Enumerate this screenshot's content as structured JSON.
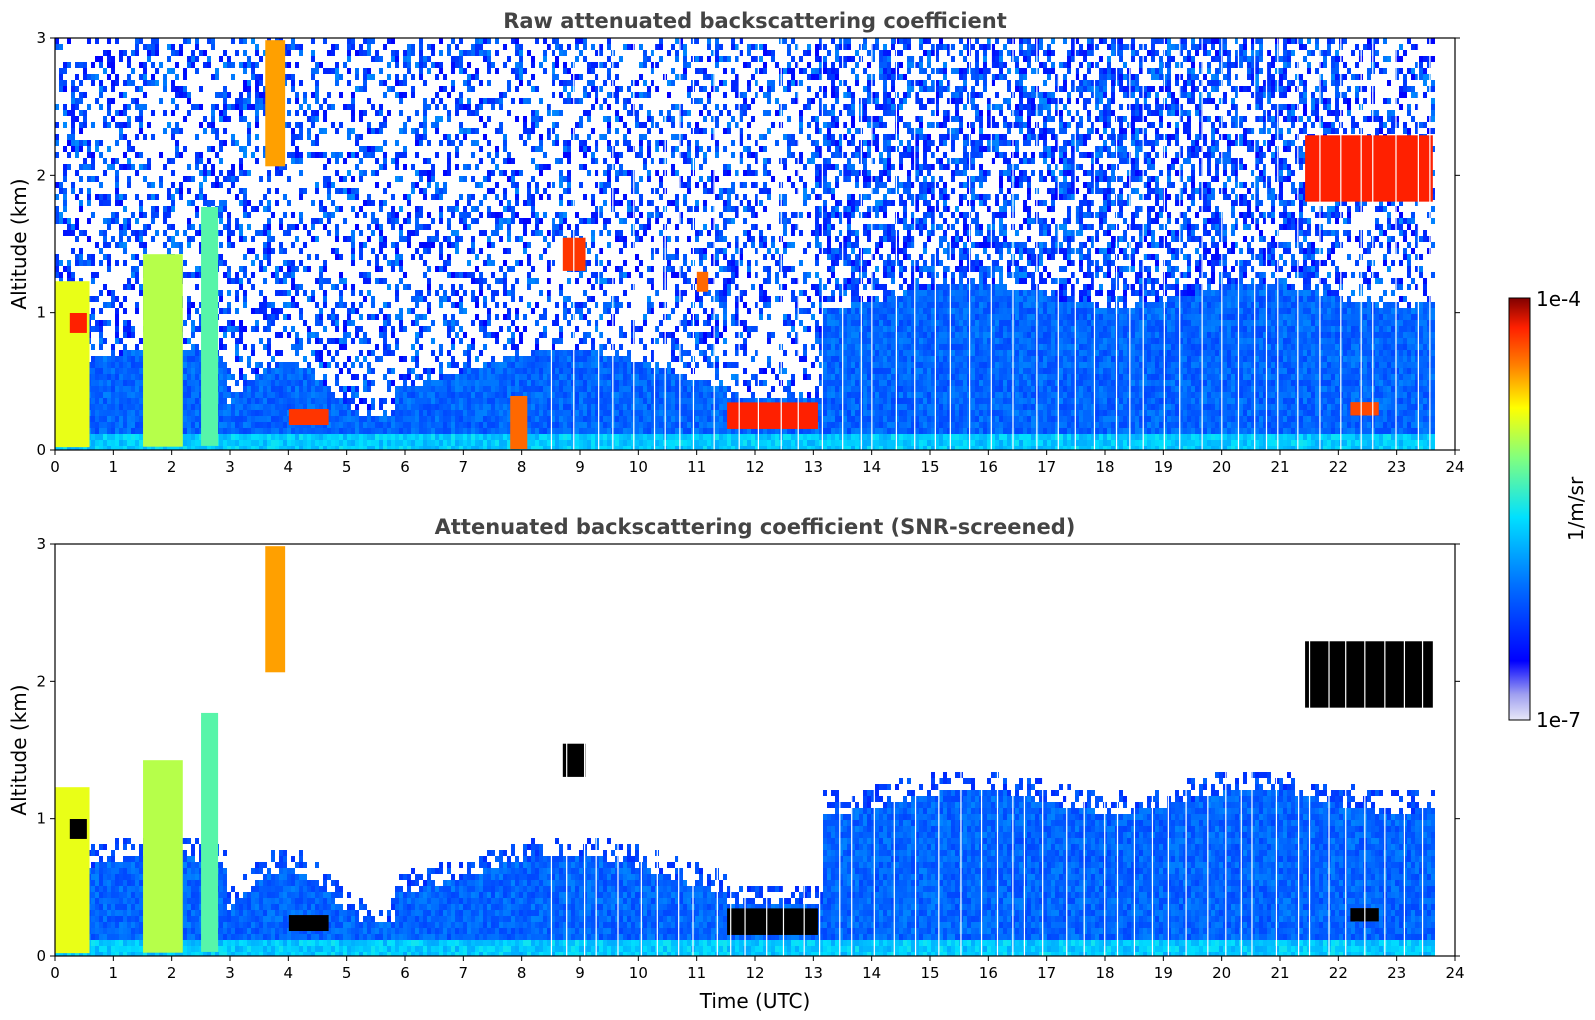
{
  "chart_data": [
    {
      "type": "heatmap",
      "title": "Raw attenuated backscattering coefficient",
      "xlabel": "",
      "ylabel": "Altitude (km)",
      "xlim": [
        0,
        24
      ],
      "ylim": [
        0,
        3
      ],
      "xticks": [
        "0",
        "1",
        "2",
        "3",
        "4",
        "5",
        "6",
        "7",
        "8",
        "9",
        "10",
        "11",
        "12",
        "13",
        "14",
        "15",
        "16",
        "17",
        "18",
        "19",
        "20",
        "21",
        "22",
        "23",
        "24"
      ],
      "yticks": [
        "0",
        "1",
        "2",
        "3"
      ],
      "data_end_time": 23.65,
      "features": [
        {
          "t0": 0.0,
          "t1": 0.6,
          "h0": 0.0,
          "h1": 1.25,
          "level": 0.75
        },
        {
          "t0": 0.25,
          "t1": 0.55,
          "h0": 0.85,
          "h1": 1.0,
          "level": 0.97
        },
        {
          "t0": 1.5,
          "t1": 2.2,
          "h0": 0.0,
          "h1": 1.45,
          "level": 0.7
        },
        {
          "t0": 2.5,
          "t1": 2.8,
          "h0": 0.0,
          "h1": 1.8,
          "level": 0.6
        },
        {
          "t0": 3.6,
          "t1": 3.95,
          "h0": 2.05,
          "h1": 3.0,
          "level": 0.85
        },
        {
          "t0": 4.0,
          "t1": 4.7,
          "h0": 0.18,
          "h1": 0.3,
          "level": 0.95
        },
        {
          "t0": 7.8,
          "t1": 8.1,
          "h0": 0.0,
          "h1": 0.4,
          "level": 0.9
        },
        {
          "t0": 8.7,
          "t1": 9.1,
          "h0": 1.3,
          "h1": 1.55,
          "level": 0.95
        },
        {
          "t0": 11.0,
          "t1": 11.2,
          "h0": 1.15,
          "h1": 1.3,
          "level": 0.9
        },
        {
          "t0": 11.5,
          "t1": 13.1,
          "h0": 0.15,
          "h1": 0.35,
          "level": 0.97
        },
        {
          "t0": 21.4,
          "t1": 23.65,
          "h0": 1.8,
          "h1": 2.3,
          "level": 0.97
        },
        {
          "t0": 22.2,
          "t1": 22.7,
          "h0": 0.25,
          "h1": 0.35,
          "level": 0.93
        }
      ]
    },
    {
      "type": "heatmap",
      "title": "Attenuated backscattering coefficient (SNR-screened)",
      "xlabel": "Time (UTC)",
      "ylabel": "Altitude (km)",
      "xlim": [
        0,
        24
      ],
      "ylim": [
        0,
        3
      ],
      "xticks": [
        "0",
        "1",
        "2",
        "3",
        "4",
        "5",
        "6",
        "7",
        "8",
        "9",
        "10",
        "11",
        "12",
        "13",
        "14",
        "15",
        "16",
        "17",
        "18",
        "19",
        "20",
        "21",
        "22",
        "23",
        "24"
      ],
      "yticks": [
        "0",
        "1",
        "2",
        "3"
      ],
      "data_end_time": 23.65,
      "features": [
        {
          "t0": 0.0,
          "t1": 0.6,
          "h0": 0.0,
          "h1": 1.25,
          "level": 0.75
        },
        {
          "t0": 0.25,
          "t1": 0.55,
          "h0": 0.85,
          "h1": 1.0,
          "level": 1.0
        },
        {
          "t0": 1.5,
          "t1": 2.2,
          "h0": 0.0,
          "h1": 1.45,
          "level": 0.7
        },
        {
          "t0": 2.5,
          "t1": 2.8,
          "h0": 0.0,
          "h1": 1.8,
          "level": 0.6
        },
        {
          "t0": 3.6,
          "t1": 3.95,
          "h0": 2.05,
          "h1": 3.0,
          "level": 0.85
        },
        {
          "t0": 4.0,
          "t1": 4.7,
          "h0": 0.18,
          "h1": 0.3,
          "level": 1.0
        },
        {
          "t0": 8.7,
          "t1": 9.1,
          "h0": 1.3,
          "h1": 1.55,
          "level": 1.0
        },
        {
          "t0": 11.5,
          "t1": 13.1,
          "h0": 0.15,
          "h1": 0.35,
          "level": 1.0
        },
        {
          "t0": 21.4,
          "t1": 23.65,
          "h0": 1.8,
          "h1": 2.3,
          "level": 1.0
        },
        {
          "t0": 22.2,
          "t1": 22.7,
          "h0": 0.25,
          "h1": 0.35,
          "level": 1.0
        }
      ]
    }
  ],
  "colorbar": {
    "max_label": "1e-4",
    "min_label": "1e-7",
    "unit_label": "1/m/sr",
    "scale": "log",
    "colors": [
      "#e8e8f8",
      "#b8b8f0",
      "#8080ff",
      "#0000ff",
      "#0070ff",
      "#00c0ff",
      "#00ffe0",
      "#80ff80",
      "#ffff00",
      "#ffa000",
      "#ff3000",
      "#c00000",
      "#800000"
    ]
  }
}
